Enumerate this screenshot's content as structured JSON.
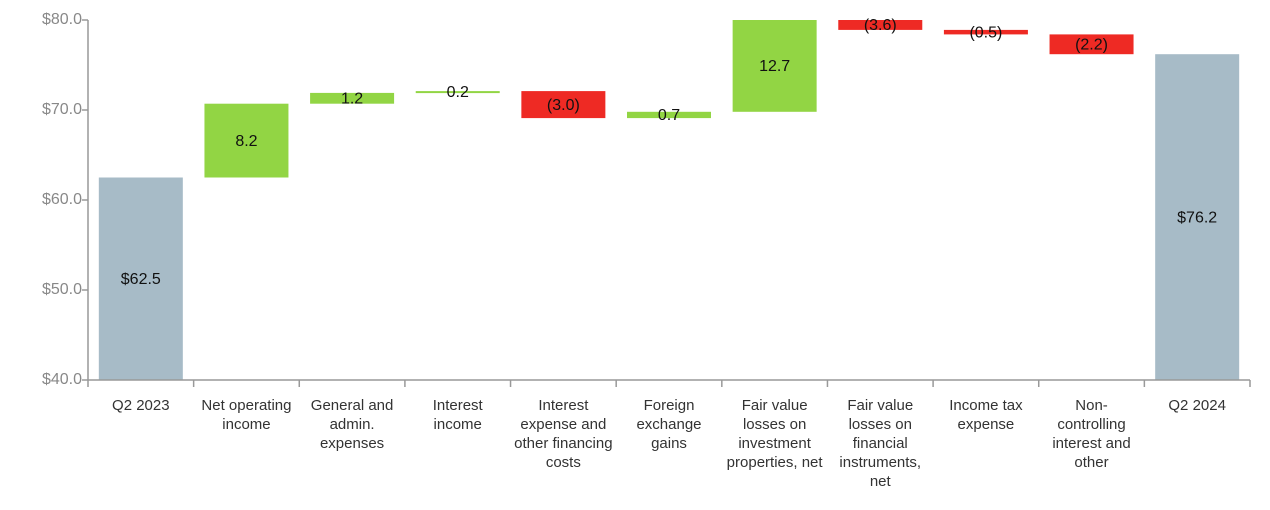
{
  "chart_data": {
    "type": "waterfall",
    "categories": [
      "Q2 2023",
      "Net operating income",
      "General and admin. expenses",
      "Interest income",
      "Interest expense and other financing costs",
      "Foreign exchange gains",
      "Fair value losses on investment properties, net",
      "Fair value losses on financial instruments, net",
      "Income tax expense",
      "Non-controlling interest and other",
      "Q2 2024"
    ],
    "values": [
      62.5,
      8.2,
      1.2,
      0.2,
      -3.0,
      0.7,
      12.7,
      -3.6,
      -0.5,
      -2.2,
      76.2
    ],
    "value_labels": [
      "$62.5",
      "8.2",
      "1.2",
      "0.2",
      "(3.0)",
      "0.7",
      "12.7",
      "(3.6)",
      "(0.5)",
      "(2.2)",
      "$76.2"
    ],
    "is_total": [
      true,
      false,
      false,
      false,
      false,
      false,
      false,
      false,
      false,
      false,
      true
    ],
    "colors": {
      "total": "#a7bbc7",
      "increase": "#92d544",
      "decrease": "#ee2a24"
    },
    "ylim": [
      40,
      80
    ],
    "yticks": [
      {
        "value": 40,
        "label": "$40.0"
      },
      {
        "value": 50,
        "label": "$50.0"
      },
      {
        "value": 60,
        "label": "$60.0"
      },
      {
        "value": 70,
        "label": "$70.0"
      },
      {
        "value": 80,
        "label": "$80.0"
      }
    ]
  }
}
